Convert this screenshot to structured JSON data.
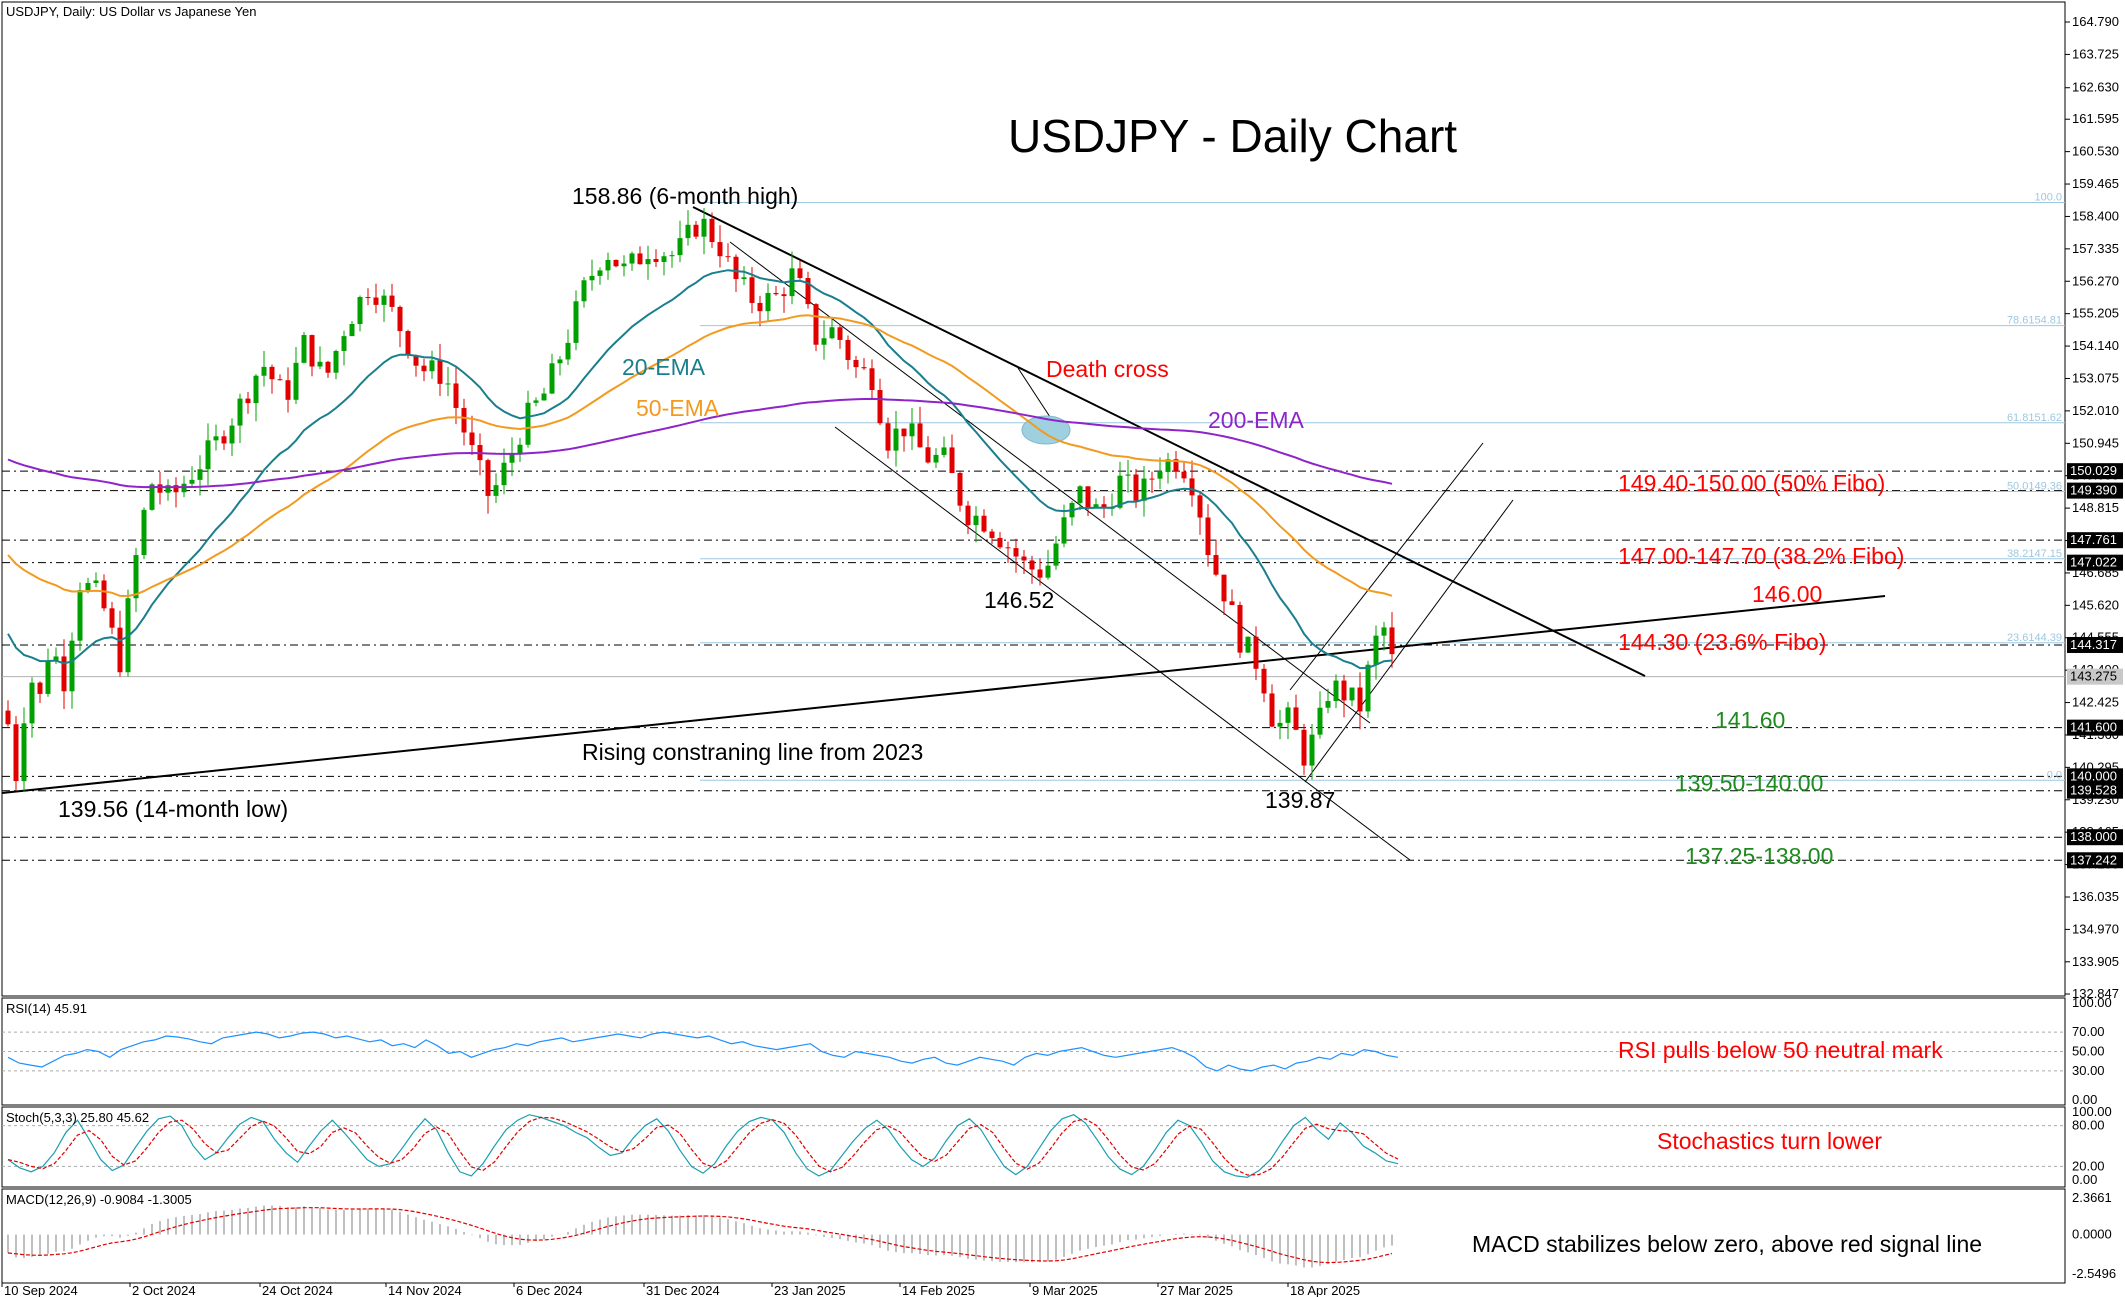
{
  "symbol_label": "USDJPY, Daily:  US Dollar vs Japanese Yen",
  "chart_title": "USDJPY - Daily Chart",
  "colors": {
    "bull": "#00a000",
    "bear": "#e00000",
    "ema20": "#1a7f8c",
    "ema50": "#f39a1e",
    "ema200": "#8e24c9",
    "red_text": "#ff0000",
    "green_text": "#1f8a1f",
    "fibo": "#9ec8e0"
  },
  "price_axis_ticks": [
    "164.790",
    "163.725",
    "162.630",
    "161.595",
    "160.530",
    "159.465",
    "158.400",
    "157.335",
    "156.270",
    "155.205",
    "154.140",
    "153.075",
    "152.010",
    "150.945",
    "149.880",
    "148.815",
    "147.750",
    "146.685",
    "145.620",
    "144.555",
    "143.490",
    "142.425",
    "141.360",
    "140.295",
    "139.230",
    "138.165",
    "137.100",
    "136.035",
    "134.970",
    "133.905",
    "132.847"
  ],
  "price_levels": [
    {
      "value": 150.029,
      "label": "150.029",
      "style": "dashdot"
    },
    {
      "value": 149.39,
      "label": "149.390",
      "style": "dashdot"
    },
    {
      "value": 147.761,
      "label": "147.761",
      "style": "dashdot"
    },
    {
      "value": 147.022,
      "label": "147.022",
      "style": "dashdot"
    },
    {
      "value": 144.317,
      "label": "144.317",
      "style": "dashdot"
    },
    {
      "value": 141.6,
      "label": "141.600",
      "style": "dashdot"
    },
    {
      "value": 140.0,
      "label": "140.000",
      "style": "dashdot"
    },
    {
      "value": 139.528,
      "label": "139.528",
      "style": "dashdot"
    },
    {
      "value": 138.0,
      "label": "138.000",
      "style": "dashdot"
    },
    {
      "value": 137.242,
      "label": "137.242",
      "style": "dashdot"
    }
  ],
  "current_price": {
    "value": 143.275,
    "label": "143.275"
  },
  "fibo_levels": [
    {
      "value": 158.86,
      "label": "100.0"
    },
    {
      "value": 154.81,
      "label": "78.6154.81"
    },
    {
      "value": 151.62,
      "label": "61.8151.62"
    },
    {
      "value": 149.36,
      "label": "50.0149.36"
    },
    {
      "value": 147.15,
      "label": "38.2147.15"
    },
    {
      "value": 144.39,
      "label": "23.6144.39"
    },
    {
      "value": 139.87,
      "label": "0.0"
    }
  ],
  "annotations": {
    "high": "158.86 (6-month high)",
    "low": "139.56 (14-month low)",
    "l14652": "146.52",
    "l13987": "139.87",
    "ema20": "20-EMA",
    "ema50": "50-EMA",
    "ema200": "200-EMA",
    "death_cross": "Death cross",
    "rising_line": "Rising constraning line from 2023",
    "fib50": "149.40-150.00 (50% Fibo)",
    "fib382": "147.00-147.70 (38.2% Fibo)",
    "l146": "146.00",
    "fib236": "144.30 (23.6% Fibo)",
    "l1416": "141.60",
    "l1395": "139.50-140.00",
    "l13725": "137.25-138.00"
  },
  "rsi": {
    "label": "RSI(14) 45.91",
    "ticks": [
      "100.00",
      "70.00",
      "50.00",
      "30.00",
      "0.00"
    ],
    "note": "RSI pulls below 50 neutral mark",
    "values": [
      44,
      38,
      36,
      34,
      40,
      46,
      48,
      52,
      50,
      44,
      52,
      56,
      60,
      62,
      66,
      65,
      63,
      60,
      58,
      64,
      66,
      68,
      70,
      68,
      64,
      66,
      69,
      70,
      68,
      64,
      66,
      63,
      60,
      62,
      56,
      58,
      54,
      62,
      56,
      48,
      50,
      44,
      48,
      52,
      54,
      58,
      56,
      60,
      62,
      64,
      60,
      62,
      64,
      66,
      68,
      66,
      64,
      68,
      70,
      68,
      66,
      64,
      66,
      62,
      58,
      60,
      56,
      54,
      52,
      54,
      56,
      58,
      50,
      46,
      44,
      50,
      48,
      46,
      44,
      40,
      38,
      42,
      44,
      38,
      36,
      40,
      44,
      42,
      40,
      36,
      44,
      48,
      46,
      50,
      52,
      54,
      50,
      46,
      44,
      46,
      48,
      50,
      52,
      54,
      50,
      44,
      34,
      30,
      36,
      32,
      30,
      34,
      36,
      32,
      38,
      40,
      44,
      42,
      48,
      46,
      52,
      50,
      46,
      44
    ]
  },
  "stoch": {
    "label": "Stoch(5,3,3) 25.80 45.62",
    "ticks": [
      "100.00",
      "80.00",
      "20.00",
      "0.00"
    ],
    "note": "Stochastics turn lower",
    "main": [
      30,
      18,
      12,
      20,
      40,
      70,
      88,
      60,
      30,
      14,
      22,
      48,
      72,
      90,
      94,
      80,
      50,
      30,
      40,
      62,
      82,
      92,
      86,
      60,
      40,
      26,
      50,
      72,
      88,
      70,
      50,
      30,
      20,
      24,
      46,
      70,
      90,
      74,
      40,
      12,
      6,
      24,
      50,
      74,
      88,
      96,
      92,
      86,
      80,
      70,
      62,
      48,
      36,
      40,
      62,
      80,
      90,
      72,
      44,
      20,
      10,
      24,
      50,
      72,
      86,
      92,
      88,
      70,
      40,
      16,
      6,
      14,
      36,
      58,
      76,
      88,
      74,
      50,
      30,
      20,
      32,
      58,
      80,
      90,
      74,
      46,
      20,
      8,
      20,
      46,
      72,
      90,
      96,
      84,
      60,
      34,
      16,
      8,
      20,
      44,
      70,
      88,
      80,
      56,
      28,
      12,
      6,
      4,
      14,
      30,
      56,
      80,
      92,
      74,
      60,
      84,
      70,
      50,
      40,
      28,
      24
    ]
  },
  "macd": {
    "label": "MACD(12,26,9) -0.9084 -1.3005",
    "ticks": [
      "2.3661",
      "0.0000",
      "-2.5496"
    ],
    "note": "MACD stabilizes below zero, above red signal line"
  },
  "date_labels": [
    "10 Sep 2024",
    "2 Oct 2024",
    "24 Oct 2024",
    "14 Nov 2024",
    "6 Dec 2024",
    "31 Dec 2024",
    "23 Jan 2025",
    "14 Feb 2025",
    "9 Mar 2025",
    "27 Mar 2025",
    "18 Apr 2025"
  ],
  "chart_data": [
    {
      "type": "candlestick",
      "title": "USDJPY - Daily Chart",
      "xlabel": "",
      "ylabel": "",
      "ylim": [
        132.847,
        165.3
      ],
      "x_ticks": [
        "10 Sep 2024",
        "2 Oct 2024",
        "24 Oct 2024",
        "14 Nov 2024",
        "6 Dec 2024",
        "31 Dec 2024",
        "23 Jan 2025",
        "14 Feb 2025",
        "9 Mar 2025",
        "27 Mar 2025",
        "18 Apr 2025"
      ],
      "series": [
        {
          "name": "20-EMA"
        },
        {
          "name": "50-EMA"
        },
        {
          "name": "200-EMA"
        }
      ],
      "key_points": [
        {
          "label": "158.86 (6-month high)",
          "value": 158.86,
          "x": "31 Dec 2024"
        },
        {
          "label": "139.56 (14-month low)",
          "value": 139.56,
          "x": "10 Sep 2024"
        },
        {
          "label": "146.52",
          "value": 146.52
        },
        {
          "label": "139.87",
          "value": 139.87
        }
      ],
      "indicators": [
        {
          "name": "RSI(14)",
          "last": 45.91,
          "ylim": [
            0,
            100
          ]
        },
        {
          "name": "Stoch(5,3,3)",
          "last": [
            25.8,
            45.62
          ],
          "ylim": [
            0,
            100
          ]
        },
        {
          "name": "MACD(12,26,9)",
          "last": [
            -0.9084,
            -1.3005
          ],
          "ylim": [
            -2.5496,
            2.3661
          ]
        }
      ]
    }
  ]
}
